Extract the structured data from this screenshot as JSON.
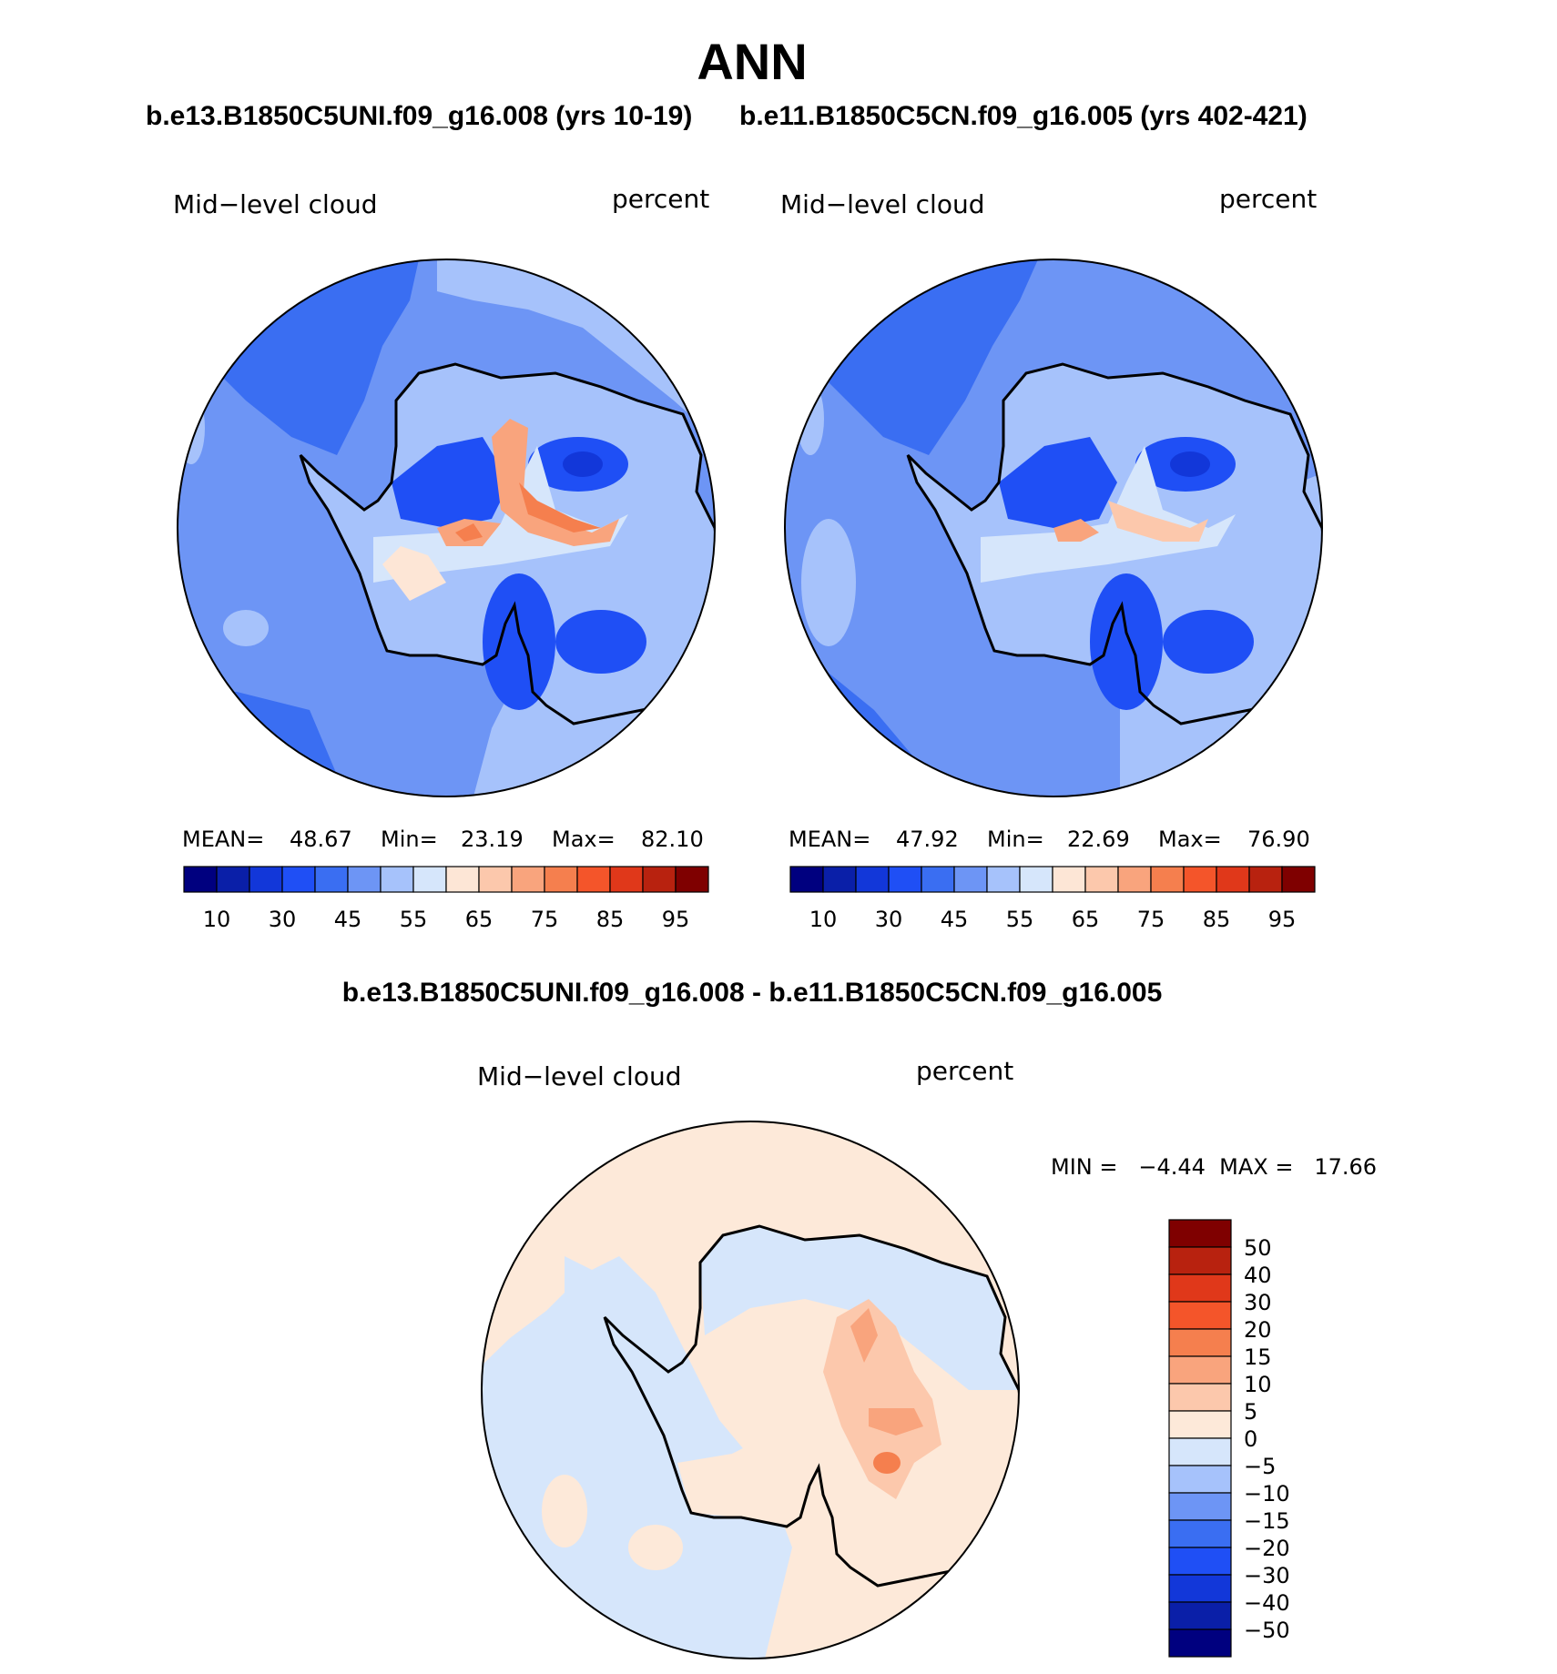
{
  "page_title": "ANN",
  "panels": [
    {
      "case_title": "b.e13.B1850C5UNI.f09_g16.008 (yrs 10-19)",
      "variable": "Mid−level cloud",
      "units": "percent",
      "stats": {
        "mean_label": "MEAN=",
        "mean": "48.67",
        "min_label": "Min=",
        "min": "23.19",
        "max_label": "Max=",
        "max": "82.10"
      }
    },
    {
      "case_title": "b.e11.B1850C5CN.f09_g16.005 (yrs 402-421)",
      "variable": "Mid−level cloud",
      "units": "percent",
      "stats": {
        "mean_label": "MEAN=",
        "mean": "47.92",
        "min_label": "Min=",
        "min": "22.69",
        "max_label": "Max=",
        "max": "76.90"
      }
    }
  ],
  "diff_panel": {
    "case_title": "b.e13.B1850C5UNI.f09_g16.008 - b.e11.B1850C5CN.f09_g16.005",
    "variable": "Mid−level cloud",
    "units": "percent",
    "stats_text": "MIN =   −4.44  MAX =   17.66"
  },
  "colorbar_main": {
    "colors": [
      "#00007f",
      "#0a1fa8",
      "#1237d9",
      "#1f4ff5",
      "#3a6ef2",
      "#6d95f5",
      "#a6c2fb",
      "#d6e6fb",
      "#fde6d6",
      "#fcc8ac",
      "#f9a47d",
      "#f57f4e",
      "#f4552a",
      "#e0381a",
      "#b8220f",
      "#7f0000"
    ],
    "tick_labels": [
      "10",
      "30",
      "45",
      "55",
      "65",
      "75",
      "85",
      "95"
    ]
  },
  "colorbar_diff": {
    "colors": [
      "#00007f",
      "#0a1fa8",
      "#1237d9",
      "#1f4ff5",
      "#3a6ef2",
      "#6d95f5",
      "#a6c2fb",
      "#d6e6fb",
      "#fde9d9",
      "#fcc8ac",
      "#f9a47d",
      "#f57f4e",
      "#f4552a",
      "#e0381a",
      "#b8220f",
      "#7f0000"
    ],
    "tick_labels": [
      "50",
      "40",
      "30",
      "20",
      "15",
      "10",
      "5",
      "0",
      "−5",
      "−10",
      "−15",
      "−20",
      "−30",
      "−40",
      "−50"
    ]
  }
}
